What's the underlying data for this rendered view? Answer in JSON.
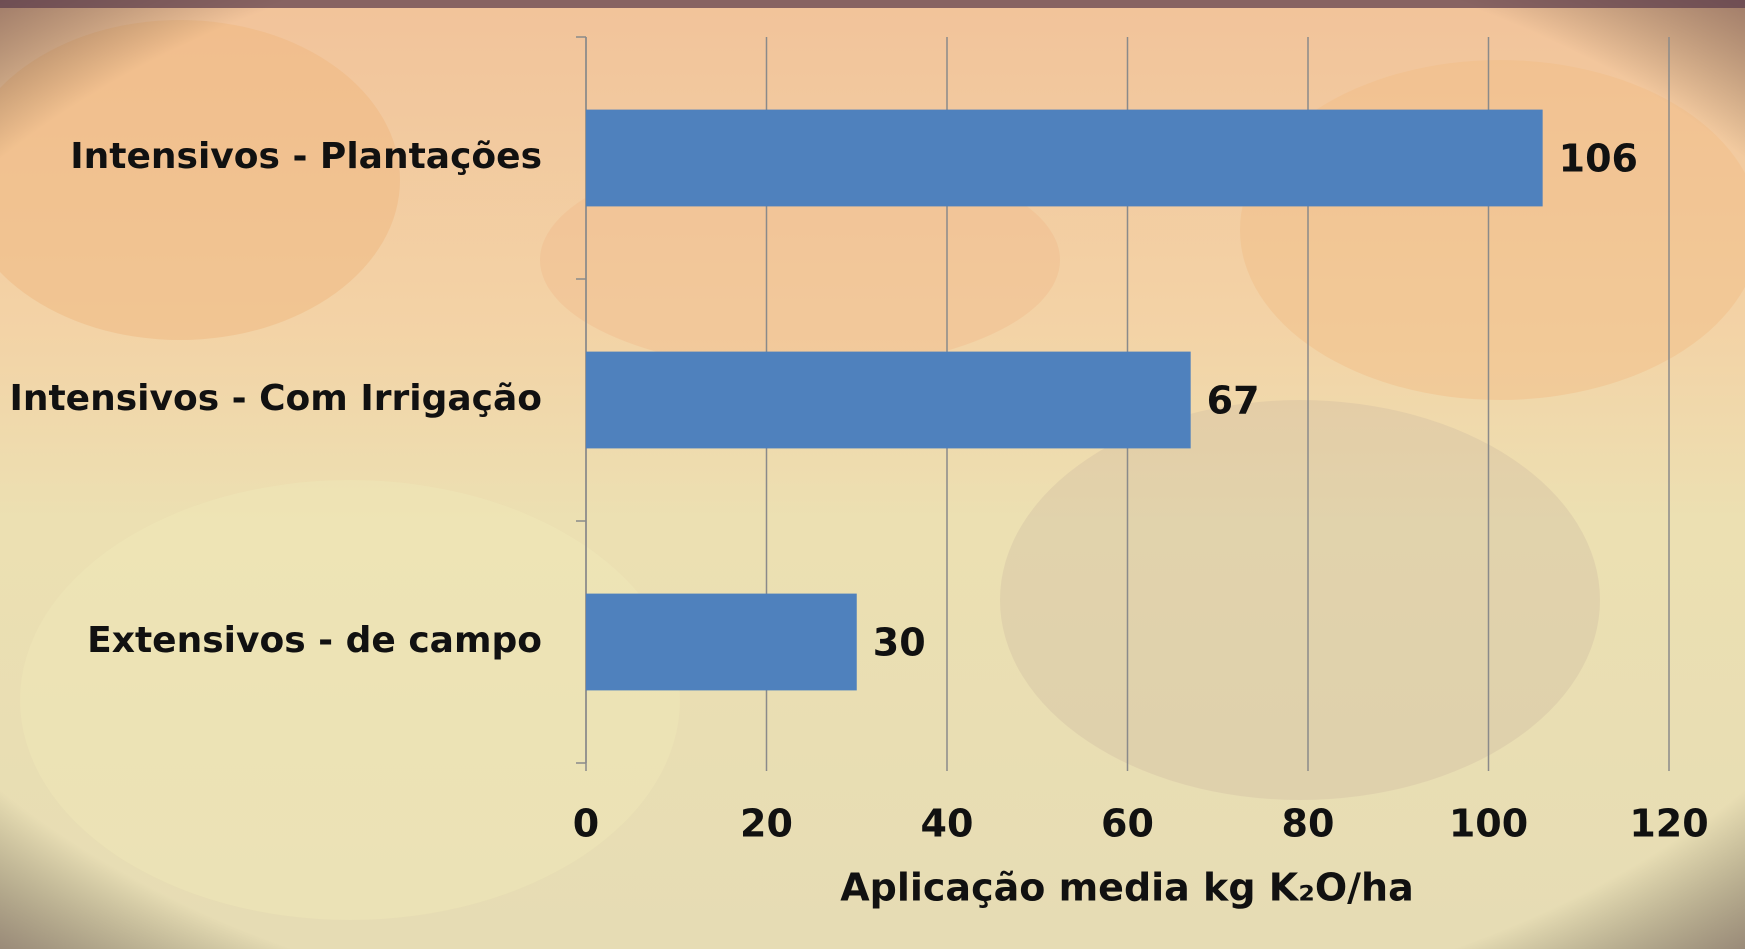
{
  "chart_data": {
    "type": "bar",
    "orientation": "horizontal",
    "categories": [
      "Intensivos - Plantações",
      "Intensivos - Com Irrigação",
      "Extensivos - de campo"
    ],
    "values": [
      106,
      67,
      30
    ],
    "color": "#4f81bd",
    "xlabel": "Aplicação media kg K₂O/ha",
    "xlim": [
      0,
      120
    ],
    "xticks": [
      0,
      20,
      40,
      60,
      80,
      100,
      120
    ],
    "grid": true
  }
}
